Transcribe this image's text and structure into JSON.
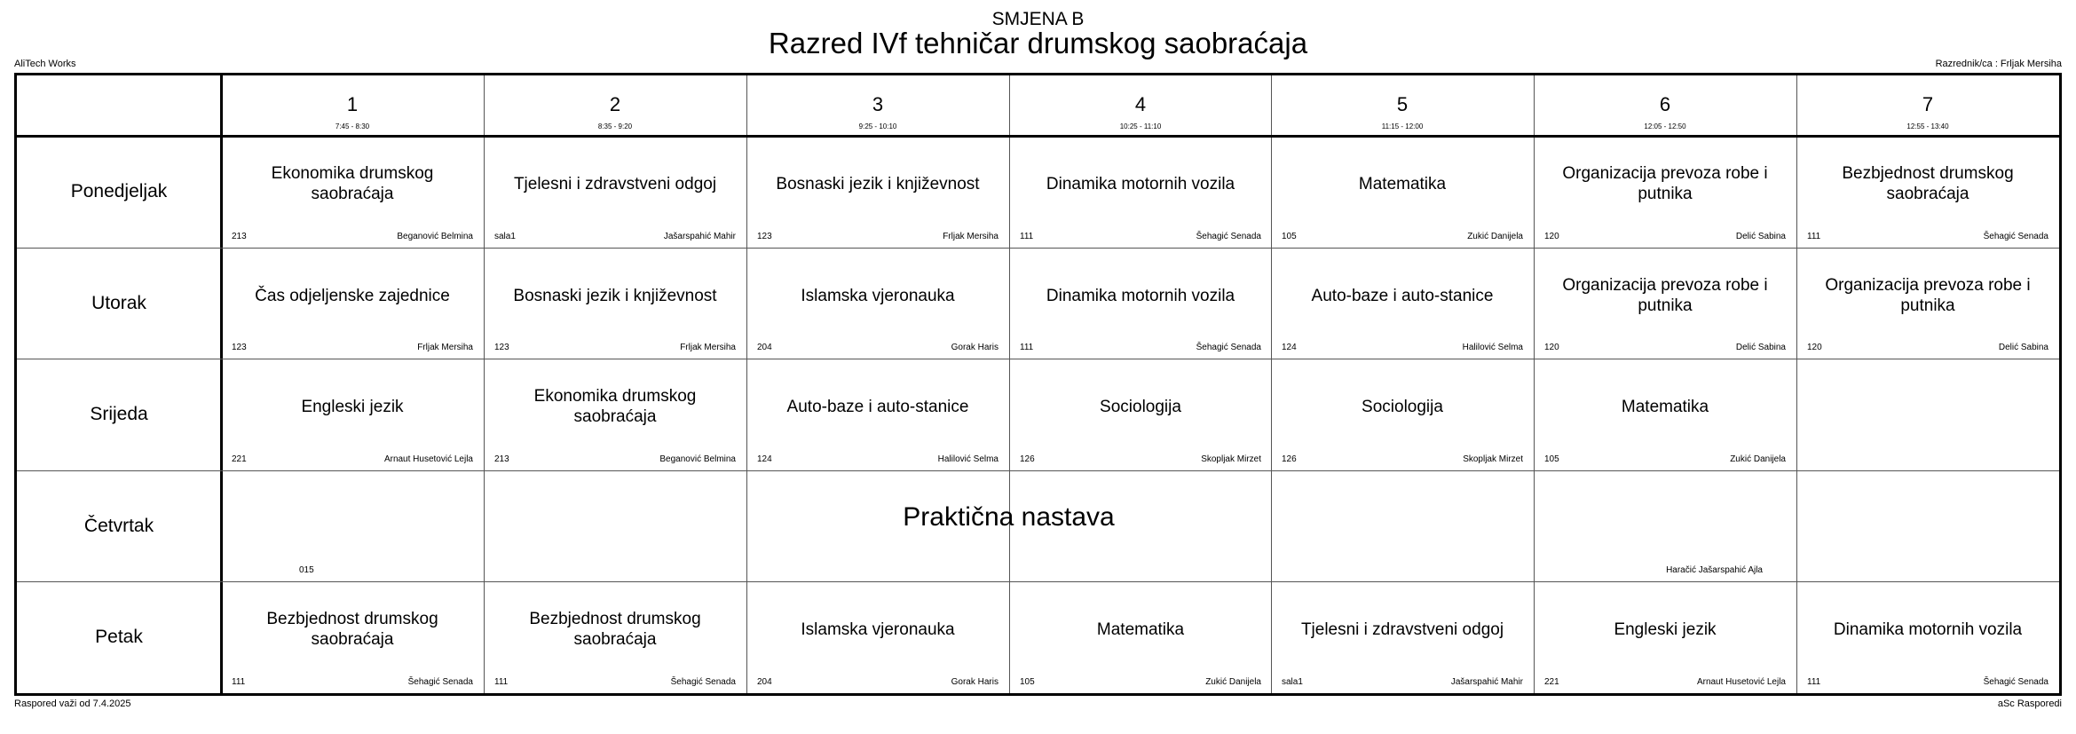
{
  "header": {
    "shift": "SMJENA B",
    "title": "Razred IVf tehničar drumskog saobraćaja",
    "school": "AliTech Works",
    "head_teacher": "Razrednik/ca : Frljak Mersiha"
  },
  "footer": {
    "valid_from": "Raspored važi od 7.4.2025",
    "software": "aSc Rasporedi"
  },
  "periods": [
    {
      "num": "1",
      "time": "7:45 - 8:30"
    },
    {
      "num": "2",
      "time": "8:35 - 9:20"
    },
    {
      "num": "3",
      "time": "9:25 - 10:10"
    },
    {
      "num": "4",
      "time": "10:25 - 11:10"
    },
    {
      "num": "5",
      "time": "11:15 - 12:00"
    },
    {
      "num": "6",
      "time": "12:05 - 12:50"
    },
    {
      "num": "7",
      "time": "12:55 - 13:40"
    }
  ],
  "days": [
    {
      "name": "Ponedjeljak",
      "lessons": [
        {
          "subject": "Ekonomika drumskog saobraćaja",
          "room": "213",
          "teacher": "Beganović Belmina"
        },
        {
          "subject": "Tjelesni i zdravstveni odgoj",
          "room": "sala1",
          "teacher": "Jašarspahić Mahir"
        },
        {
          "subject": "Bosnaski jezik i književnost",
          "room": "123",
          "teacher": "Frljak Mersiha"
        },
        {
          "subject": "Dinamika motornih vozila",
          "room": "111",
          "teacher": "Šehagić Senada"
        },
        {
          "subject": "Matematika",
          "room": "105",
          "teacher": "Zukić Danijela"
        },
        {
          "subject": "Organizacija prevoza robe i putnika",
          "room": "120",
          "teacher": "Delić Sabina"
        },
        {
          "subject": "Bezbjednost drumskog saobraćaja",
          "room": "111",
          "teacher": "Šehagić Senada"
        }
      ]
    },
    {
      "name": "Utorak",
      "lessons": [
        {
          "subject": "Čas odjeljenske zajednice",
          "room": "123",
          "teacher": "Frljak Mersiha"
        },
        {
          "subject": "Bosnaski jezik i književnost",
          "room": "123",
          "teacher": "Frljak Mersiha"
        },
        {
          "subject": "Islamska vjeronauka",
          "room": "204",
          "teacher": "Gorak Haris"
        },
        {
          "subject": "Dinamika motornih vozila",
          "room": "111",
          "teacher": "Šehagić Senada"
        },
        {
          "subject": "Auto-baze i auto-stanice",
          "room": "124",
          "teacher": "Halilović Selma"
        },
        {
          "subject": "Organizacija prevoza robe i putnika",
          "room": "120",
          "teacher": "Delić Sabina"
        },
        {
          "subject": "Organizacija prevoza robe i putnika",
          "room": "120",
          "teacher": "Delić Sabina"
        }
      ]
    },
    {
      "name": "Srijeda",
      "lessons": [
        {
          "subject": "Engleski jezik",
          "room": "221",
          "teacher": "Arnaut Husetović Lejla"
        },
        {
          "subject": "Ekonomika drumskog saobraćaja",
          "room": "213",
          "teacher": "Beganović Belmina"
        },
        {
          "subject": "Auto-baze i auto-stanice",
          "room": "124",
          "teacher": "Halilović Selma"
        },
        {
          "subject": "Sociologija",
          "room": "126",
          "teacher": "Skopljak Mirzet"
        },
        {
          "subject": "Sociologija",
          "room": "126",
          "teacher": "Skopljak Mirzet"
        },
        {
          "subject": "Matematika",
          "room": "105",
          "teacher": "Zukić Danijela"
        },
        {
          "subject": "",
          "room": "",
          "teacher": ""
        }
      ]
    },
    {
      "name": "Četvrtak",
      "block": {
        "subject": "Praktična nastava",
        "room": "015",
        "teacher": "Haračić Jašarspahić Ajla"
      }
    },
    {
      "name": "Petak",
      "lessons": [
        {
          "subject": "Bezbjednost drumskog saobraćaja",
          "room": "111",
          "teacher": "Šehagić Senada"
        },
        {
          "subject": "Bezbjednost drumskog saobraćaja",
          "room": "111",
          "teacher": "Šehagić Senada"
        },
        {
          "subject": "Islamska vjeronauka",
          "room": "204",
          "teacher": "Gorak Haris"
        },
        {
          "subject": "Matematika",
          "room": "105",
          "teacher": "Zukić Danijela"
        },
        {
          "subject": "Tjelesni i zdravstveni odgoj",
          "room": "sala1",
          "teacher": "Jašarspahić Mahir"
        },
        {
          "subject": "Engleski jezik",
          "room": "221",
          "teacher": "Arnaut Husetović Lejla"
        },
        {
          "subject": "Dinamika motornih vozila",
          "room": "111",
          "teacher": "Šehagić Senada"
        }
      ]
    }
  ]
}
